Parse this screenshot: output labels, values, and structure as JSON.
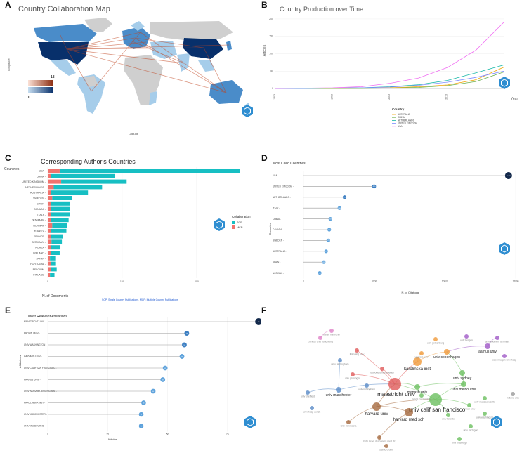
{
  "panels": {
    "A": {
      "letter": "A",
      "title": "Country Collaboration Map",
      "xlabel": "Latitude",
      "ylabel": "Longitude",
      "legend_max": "18",
      "legend_min": "0"
    },
    "B": {
      "letter": "B",
      "title": "Country Production over Time",
      "xlabel": "Year",
      "ylabel": "Articles",
      "legend_title": "Country"
    },
    "C": {
      "letter": "C",
      "title": "Corresponding Author's Countries",
      "ylabel": "Countries",
      "xlabel": "N. of Documents",
      "legend_title": "Collaboration",
      "footnote": "SCP: Single Country Publications, MCP: Multiple Country Publications"
    },
    "D": {
      "letter": "D",
      "title": "Most Cited Countries",
      "ylabel": "Countries",
      "xlabel": "N. of Citations"
    },
    "E": {
      "letter": "E",
      "title": "Most Relevant Affiliations",
      "ylabel": "Affiliations",
      "xlabel": "Articles"
    },
    "F": {
      "letter": "F"
    }
  },
  "chart_data": [
    {
      "id": "A",
      "type": "heatmap",
      "title": "Country Collaboration Map",
      "xlabel": "Latitude",
      "ylabel": "Longitude",
      "legend_range": [
        0,
        18
      ],
      "colors": {
        "high": "#08306b",
        "mid": "#4a8cc9",
        "low": "#a6cdea",
        "none": "#cfcfcf",
        "link": "#c0441f"
      }
    },
    {
      "id": "B",
      "type": "line",
      "title": "Country Production over Time",
      "xlabel": "Year",
      "ylabel": "Articles",
      "x": [
        1983,
        1988,
        1993,
        1998,
        2003,
        2008,
        2013,
        2018,
        2023
      ],
      "xticks": [
        1983,
        1993,
        2003,
        2013
      ],
      "yticks": [
        0,
        50,
        100,
        150,
        200
      ],
      "ylim": [
        0,
        210
      ],
      "series": [
        {
          "name": "AUSTRALIA",
          "color": "#f0a400",
          "values": [
            0,
            0,
            0,
            1,
            2,
            5,
            10,
            25,
            62
          ]
        },
        {
          "name": "CHINA",
          "color": "#6ab04c",
          "values": [
            0,
            0,
            0,
            0,
            1,
            3,
            8,
            20,
            48
          ]
        },
        {
          "name": "NETHERLANDS",
          "color": "#15b7a6",
          "values": [
            0,
            0,
            1,
            2,
            5,
            11,
            23,
            45,
            68
          ]
        },
        {
          "name": "UNITED KINGDOM",
          "color": "#7f8cff",
          "values": [
            0,
            0,
            1,
            2,
            4,
            9,
            18,
            32,
            50
          ]
        },
        {
          "name": "USA",
          "color": "#f06cf2",
          "values": [
            0,
            1,
            2,
            5,
            15,
            30,
            60,
            110,
            192
          ]
        }
      ]
    },
    {
      "id": "C",
      "type": "bar",
      "title": "Corresponding Author's Countries",
      "xlabel": "N. of Documents",
      "ylabel": "Countries",
      "categories": [
        "USA",
        "CHINA",
        "UNITED KINGDOM",
        "NETHERLANDS",
        "AUSTRALIA",
        "SWEDEN",
        "SPAIN",
        "CANADA",
        "ITALY",
        "DENMARK",
        "NORWAY",
        "TURKEY",
        "FRANCE",
        "GERMANY",
        "KOREA",
        "IRELAND",
        "JAPAN",
        "PORTUGAL",
        "BELGIUM",
        "FINLAND"
      ],
      "series": [
        {
          "name": "SCP",
          "color": "#17bfc3",
          "values": [
            242,
            86,
            88,
            65,
            50,
            27,
            26,
            26,
            26,
            24,
            20,
            21,
            16,
            14,
            13,
            12,
            8,
            7,
            8,
            6
          ]
        },
        {
          "name": "MCP",
          "color": "#f0736e",
          "values": [
            16,
            4,
            18,
            8,
            4,
            6,
            4,
            4,
            4,
            4,
            6,
            4,
            4,
            5,
            4,
            4,
            3,
            4,
            4,
            3
          ]
        }
      ],
      "xticks": [
        0,
        100,
        200
      ],
      "xlim": [
        0,
        270
      ],
      "legend_entries": [
        "SCP",
        "MCP"
      ]
    },
    {
      "id": "D",
      "type": "scatter",
      "title": "Most Cited Countries",
      "xlabel": "N. of Citations",
      "ylabel": "Countries",
      "categories": [
        "USA",
        "UNITED KINGDOM",
        "NETHERLANDS",
        "ITALY",
        "CHINA",
        "CANADA",
        "SWEDEN",
        "AUSTRALIA",
        "SPAIN",
        "NORWAY"
      ],
      "values": [
        14496,
        4995,
        2906,
        2544,
        1901,
        1823,
        1756,
        1599,
        1431,
        1149
      ],
      "xticks": [
        0,
        5000,
        10000,
        15000
      ],
      "xlim": [
        0,
        15000
      ]
    },
    {
      "id": "E",
      "type": "scatter",
      "title": "Most Relevant Affiliations",
      "xlabel": "Articles",
      "ylabel": "Affiliations",
      "categories": [
        "MAASTRICHT UNIV",
        "BROWN UNIV",
        "UNIV WASHINGTON",
        "HARVARD UNIV",
        "UNIV CALIF SAN FRANCISCO",
        "AARHUS UNIV",
        "UNIV ALABAMA BIRMINGHAM",
        "KAROLINSKA INST",
        "UNIV MANCHESTER",
        "UNIV MELBOURNE"
      ],
      "values": [
        88,
        58,
        57,
        56,
        49,
        48,
        44,
        40,
        39,
        39
      ],
      "xticks": [
        0,
        25,
        50,
        75
      ],
      "xlim": [
        0,
        90
      ]
    },
    {
      "id": "F",
      "type": "scatter",
      "title": "",
      "nodes": [
        {
          "label": "maastricht univ",
          "cluster": "red",
          "size": "xl"
        },
        {
          "label": "karolinska inst",
          "cluster": "orange",
          "size": "l"
        },
        {
          "label": "univ calif san francisco",
          "cluster": "green",
          "size": "xl"
        },
        {
          "label": "harvard univ",
          "cluster": "brown",
          "size": "l"
        },
        {
          "label": "harvard med sch",
          "cluster": "brown",
          "size": "l"
        },
        {
          "label": "univ melbourne",
          "cluster": "green",
          "size": "m"
        },
        {
          "label": "univ sydney",
          "cluster": "green",
          "size": "m"
        },
        {
          "label": "monash univ",
          "cluster": "green",
          "size": "m"
        },
        {
          "label": "univ manchester",
          "cluster": "blue",
          "size": "m"
        },
        {
          "label": "aarhus univ",
          "cluster": "purple",
          "size": "m"
        },
        {
          "label": "univ copenhagen",
          "cluster": "orange",
          "size": "m"
        },
        {
          "label": "radboud univ nijmegen",
          "cluster": "red",
          "size": "s"
        },
        {
          "label": "univ groningen",
          "cluster": "red",
          "size": "s"
        },
        {
          "label": "univ gothenburg",
          "cluster": "orange",
          "size": "s"
        },
        {
          "label": "univ southern denmark",
          "cluster": "purple",
          "size": "s"
        },
        {
          "label": "copenhagen univ hosp",
          "cluster": "purple",
          "size": "s"
        },
        {
          "label": "univ bergen",
          "cluster": "purple",
          "size": "s"
        },
        {
          "label": "uppsala univ",
          "cluster": "orange",
          "size": "s"
        },
        {
          "label": "kings coll london",
          "cluster": "green",
          "size": "s"
        },
        {
          "label": "univ toronto",
          "cluster": "green",
          "size": "s"
        },
        {
          "label": "univ washington",
          "cluster": "green",
          "size": "s"
        },
        {
          "label": "brown univ",
          "cluster": "green",
          "size": "s"
        },
        {
          "label": "univ michigan",
          "cluster": "green",
          "size": "s"
        },
        {
          "label": "univ massachusetts",
          "cluster": "green",
          "size": "s"
        },
        {
          "label": "univ pittsburgh",
          "cluster": "green",
          "size": "s"
        },
        {
          "label": "indiana univ",
          "cluster": "grey",
          "size": "s"
        },
        {
          "label": "univ sheffield",
          "cluster": "blue",
          "size": "s"
        },
        {
          "label": "univ birmingham",
          "cluster": "blue",
          "size": "s"
        },
        {
          "label": "univ nottingham",
          "cluster": "blue",
          "size": "s"
        },
        {
          "label": "univ hosp zurich",
          "cluster": "blue",
          "size": "s"
        },
        {
          "label": "chinese univ hong kong",
          "cluster": "pink",
          "size": "s"
        },
        {
          "label": "tianjin med univ",
          "cluster": "pink",
          "size": "s"
        },
        {
          "label": "linkoping univ",
          "cluster": "red",
          "size": "s"
        },
        {
          "label": "univ minnesota",
          "cluster": "brown",
          "size": "s"
        },
        {
          "label": "beth israel deaconess med ctr",
          "cluster": "brown",
          "size": "s"
        },
        {
          "label": "stanford univ",
          "cluster": "brown",
          "size": "s"
        }
      ]
    }
  ]
}
